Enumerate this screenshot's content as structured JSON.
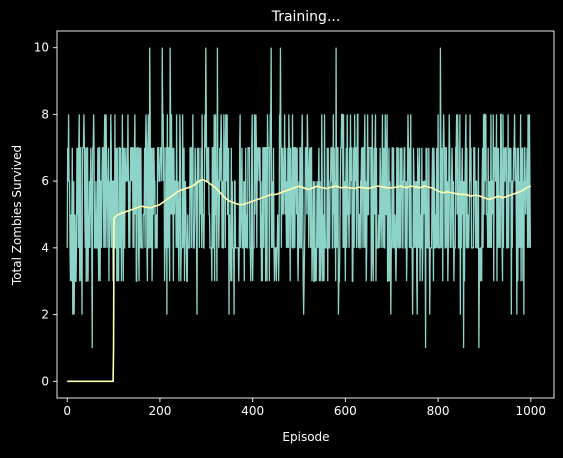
{
  "colors": {
    "background": "#000000",
    "axes": "#ffffff",
    "raw_series": "#8dd3c7",
    "mean_series": "#ffffb3"
  },
  "chart_data": {
    "type": "line",
    "title": "Training...",
    "xlabel": "Episode",
    "ylabel": "Total Zombies Survived",
    "xlim": [
      -22,
      1050
    ],
    "ylim": [
      -0.5,
      10.5
    ],
    "xticks": [
      0,
      200,
      400,
      600,
      800,
      1000
    ],
    "yticks": [
      0,
      2,
      4,
      6,
      8,
      10
    ],
    "grid": false,
    "legend": "none",
    "series": [
      {
        "kind": "raw",
        "description": "per-episode score, integer values 1-10 fluctuating around 5-6",
        "spikes_high": [
          [
            178,
            10
          ],
          [
            205,
            10
          ],
          [
            222,
            10
          ],
          [
            299,
            10
          ],
          [
            324,
            10
          ],
          [
            440,
            10
          ],
          [
            460,
            10
          ],
          [
            580,
            10
          ],
          [
            805,
            10
          ]
        ],
        "spikes_low": [
          [
            54,
            1
          ],
          [
            773,
            1
          ],
          [
            888,
            1
          ],
          [
            855,
            1
          ],
          [
            12,
            2
          ],
          [
            15,
            2
          ],
          [
            32,
            2
          ],
          [
            215,
            2
          ],
          [
            280,
            2
          ],
          [
            349,
            2
          ],
          [
            360,
            2
          ],
          [
            510,
            2
          ],
          [
            585,
            2
          ],
          [
            698,
            2
          ],
          [
            745,
            2
          ],
          [
            755,
            2
          ],
          [
            782,
            2
          ],
          [
            848,
            2
          ],
          [
            958,
            2
          ],
          [
            970,
            2
          ],
          [
            985,
            2
          ]
        ],
        "band_low": 3,
        "band_high": 7,
        "start_value": 4,
        "episodes": 1000
      },
      {
        "kind": "mean",
        "description": "running mean (100-episode window), 0 for first 100 episodes",
        "x": [
          0,
          99,
          100,
          101,
          110,
          120,
          130,
          140,
          150,
          160,
          170,
          180,
          190,
          200,
          210,
          220,
          230,
          240,
          250,
          260,
          270,
          280,
          290,
          300,
          310,
          320,
          330,
          340,
          350,
          360,
          370,
          380,
          390,
          400,
          410,
          420,
          430,
          440,
          450,
          460,
          470,
          480,
          490,
          500,
          510,
          520,
          530,
          540,
          550,
          560,
          570,
          580,
          590,
          600,
          610,
          620,
          630,
          640,
          650,
          660,
          670,
          680,
          690,
          700,
          710,
          720,
          730,
          740,
          750,
          760,
          770,
          780,
          790,
          800,
          810,
          820,
          830,
          840,
          850,
          860,
          870,
          880,
          890,
          900,
          910,
          920,
          930,
          940,
          950,
          960,
          970,
          980,
          990,
          1000
        ],
        "y": [
          0,
          0,
          1.0,
          4.9,
          5.0,
          5.05,
          5.1,
          5.15,
          5.2,
          5.25,
          5.22,
          5.2,
          5.25,
          5.3,
          5.4,
          5.5,
          5.6,
          5.7,
          5.75,
          5.8,
          5.85,
          5.95,
          6.05,
          6.0,
          5.9,
          5.8,
          5.65,
          5.5,
          5.4,
          5.35,
          5.3,
          5.3,
          5.35,
          5.4,
          5.45,
          5.5,
          5.55,
          5.6,
          5.6,
          5.65,
          5.7,
          5.75,
          5.8,
          5.85,
          5.8,
          5.75,
          5.8,
          5.85,
          5.8,
          5.78,
          5.82,
          5.85,
          5.8,
          5.82,
          5.8,
          5.78,
          5.82,
          5.8,
          5.78,
          5.82,
          5.85,
          5.83,
          5.8,
          5.8,
          5.82,
          5.85,
          5.8,
          5.85,
          5.83,
          5.8,
          5.85,
          5.82,
          5.78,
          5.7,
          5.65,
          5.68,
          5.65,
          5.62,
          5.6,
          5.6,
          5.55,
          5.58,
          5.55,
          5.5,
          5.45,
          5.5,
          5.55,
          5.5,
          5.55,
          5.6,
          5.65,
          5.7,
          5.8,
          5.85
        ]
      }
    ]
  }
}
